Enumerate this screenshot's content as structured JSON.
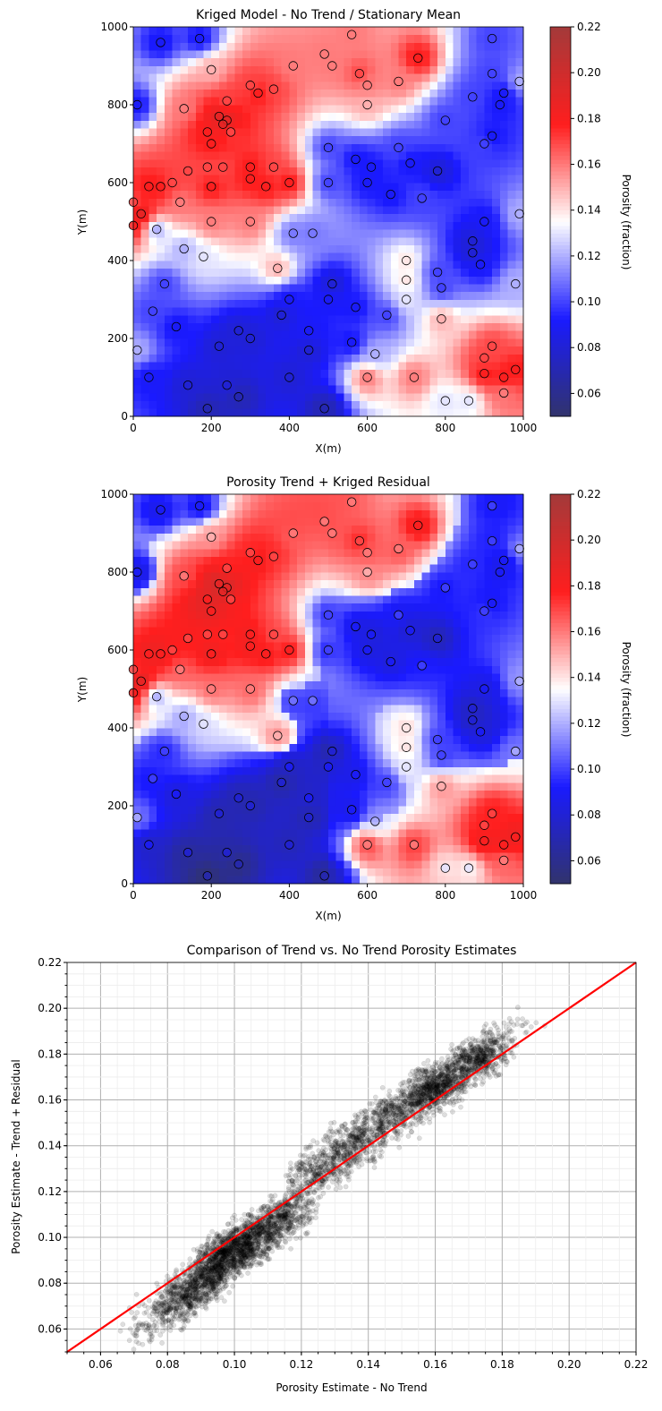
{
  "chart_data": [
    {
      "type": "heatmap",
      "title": "Kriged Model - No Trend / Stationary Mean",
      "xlabel": "X(m)",
      "ylabel": "Y(m)",
      "xlim": [
        0,
        1000
      ],
      "ylim": [
        0,
        1000
      ],
      "xticks": [
        "0",
        "200",
        "400",
        "600",
        "800",
        "1000"
      ],
      "yticks": [
        "0",
        "200",
        "400",
        "600",
        "800",
        "1000"
      ],
      "colorbar": {
        "label": "Porosity (fraction)",
        "range": [
          0.05,
          0.22
        ],
        "ticks": [
          "0.06",
          "0.08",
          "0.10",
          "0.12",
          "0.14",
          "0.16",
          "0.18",
          "0.20",
          "0.22"
        ],
        "colormap": "seismic"
      },
      "stationary_mean": 0.13,
      "wells": [
        [
          20,
          520,
          0.19
        ],
        [
          40,
          590,
          0.18
        ],
        [
          70,
          590,
          0.18
        ],
        [
          100,
          600,
          0.17
        ],
        [
          140,
          630,
          0.17
        ],
        [
          190,
          640,
          0.17
        ],
        [
          200,
          590,
          0.18
        ],
        [
          230,
          640,
          0.17
        ],
        [
          220,
          770,
          0.19
        ],
        [
          240,
          760,
          0.19
        ],
        [
          230,
          750,
          0.19
        ],
        [
          250,
          730,
          0.17
        ],
        [
          200,
          700,
          0.18
        ],
        [
          190,
          730,
          0.18
        ],
        [
          300,
          640,
          0.18
        ],
        [
          300,
          610,
          0.18
        ],
        [
          340,
          590,
          0.18
        ],
        [
          360,
          640,
          0.17
        ],
        [
          400,
          600,
          0.18
        ],
        [
          320,
          830,
          0.18
        ],
        [
          300,
          850,
          0.17
        ],
        [
          360,
          840,
          0.17
        ],
        [
          240,
          810,
          0.17
        ],
        [
          410,
          900,
          0.16
        ],
        [
          490,
          930,
          0.16
        ],
        [
          510,
          900,
          0.16
        ],
        [
          580,
          880,
          0.17
        ],
        [
          560,
          980,
          0.16
        ],
        [
          730,
          920,
          0.18
        ],
        [
          600,
          850,
          0.16
        ],
        [
          600,
          800,
          0.15
        ],
        [
          680,
          860,
          0.16
        ],
        [
          950,
          100,
          0.18
        ],
        [
          900,
          110,
          0.18
        ],
        [
          980,
          120,
          0.18
        ],
        [
          920,
          180,
          0.17
        ],
        [
          900,
          150,
          0.17
        ],
        [
          950,
          60,
          0.16
        ],
        [
          600,
          100,
          0.16
        ],
        [
          720,
          100,
          0.16
        ],
        [
          790,
          250,
          0.15
        ],
        [
          370,
          380,
          0.15
        ],
        [
          200,
          500,
          0.16
        ],
        [
          300,
          500,
          0.16
        ],
        [
          120,
          550,
          0.16
        ],
        [
          0,
          490,
          0.18
        ],
        [
          0,
          550,
          0.17
        ],
        [
          130,
          790,
          0.16
        ],
        [
          200,
          890,
          0.15
        ],
        [
          70,
          960,
          0.09
        ],
        [
          170,
          970,
          0.09
        ],
        [
          10,
          800,
          0.09
        ],
        [
          40,
          100,
          0.09
        ],
        [
          190,
          20,
          0.07
        ],
        [
          270,
          50,
          0.07
        ],
        [
          240,
          80,
          0.08
        ],
        [
          140,
          80,
          0.08
        ],
        [
          110,
          230,
          0.09
        ],
        [
          220,
          180,
          0.08
        ],
        [
          270,
          220,
          0.08
        ],
        [
          300,
          200,
          0.08
        ],
        [
          380,
          260,
          0.08
        ],
        [
          400,
          300,
          0.09
        ],
        [
          400,
          100,
          0.08
        ],
        [
          450,
          170,
          0.08
        ],
        [
          450,
          220,
          0.09
        ],
        [
          490,
          20,
          0.07
        ],
        [
          510,
          340,
          0.08
        ],
        [
          500,
          300,
          0.09
        ],
        [
          570,
          280,
          0.09
        ],
        [
          570,
          660,
          0.09
        ],
        [
          610,
          640,
          0.09
        ],
        [
          600,
          600,
          0.09
        ],
        [
          500,
          600,
          0.1
        ],
        [
          500,
          690,
          0.1
        ],
        [
          660,
          570,
          0.09
        ],
        [
          780,
          630,
          0.08
        ],
        [
          710,
          650,
          0.09
        ],
        [
          680,
          690,
          0.1
        ],
        [
          870,
          450,
          0.08
        ],
        [
          900,
          500,
          0.09
        ],
        [
          870,
          420,
          0.08
        ],
        [
          890,
          390,
          0.09
        ],
        [
          780,
          370,
          0.1
        ],
        [
          790,
          330,
          0.1
        ],
        [
          920,
          720,
          0.09
        ],
        [
          900,
          700,
          0.1
        ],
        [
          940,
          800,
          0.09
        ],
        [
          950,
          830,
          0.09
        ],
        [
          870,
          820,
          0.1
        ],
        [
          920,
          880,
          0.1
        ],
        [
          920,
          970,
          0.1
        ],
        [
          50,
          270,
          0.1
        ],
        [
          80,
          340,
          0.1
        ],
        [
          560,
          190,
          0.09
        ],
        [
          650,
          260,
          0.1
        ],
        [
          800,
          760,
          0.1
        ],
        [
          740,
          560,
          0.1
        ],
        [
          410,
          470,
          0.11
        ],
        [
          460,
          470,
          0.11
        ],
        [
          60,
          480,
          0.12
        ],
        [
          130,
          430,
          0.12
        ],
        [
          180,
          410,
          0.13
        ],
        [
          700,
          400,
          0.14
        ],
        [
          700,
          350,
          0.14
        ],
        [
          10,
          170,
          0.12
        ],
        [
          620,
          160,
          0.12
        ],
        [
          700,
          300,
          0.13
        ],
        [
          990,
          860,
          0.12
        ],
        [
          990,
          520,
          0.12
        ],
        [
          980,
          340,
          0.12
        ],
        [
          860,
          40,
          0.13
        ],
        [
          800,
          40,
          0.13
        ]
      ]
    },
    {
      "type": "heatmap",
      "title": "Porosity Trend + Kriged Residual",
      "xlabel": "X(m)",
      "ylabel": "Y(m)",
      "xlim": [
        0,
        1000
      ],
      "ylim": [
        0,
        1000
      ],
      "xticks": [
        "0",
        "200",
        "400",
        "600",
        "800",
        "1000"
      ],
      "yticks": [
        "0",
        "200",
        "400",
        "600",
        "800",
        "1000"
      ],
      "colorbar": {
        "label": "Porosity (fraction)",
        "range": [
          0.05,
          0.22
        ],
        "ticks": [
          "0.06",
          "0.08",
          "0.10",
          "0.12",
          "0.14",
          "0.16",
          "0.18",
          "0.20",
          "0.22"
        ],
        "colormap": "seismic"
      }
    },
    {
      "type": "scatter",
      "title": "Comparison of Trend vs. No Trend Porosity Estimates",
      "xlabel": "Porosity Estimate - No Trend",
      "ylabel": "Porosity Estimate - Trend + Residual",
      "xlim": [
        0.05,
        0.22
      ],
      "ylim": [
        0.05,
        0.22
      ],
      "xticks": [
        "0.06",
        "0.08",
        "0.10",
        "0.12",
        "0.14",
        "0.16",
        "0.18",
        "0.20",
        "0.22"
      ],
      "yticks": [
        "0.06",
        "0.08",
        "0.10",
        "0.12",
        "0.14",
        "0.16",
        "0.18",
        "0.20",
        "0.22"
      ],
      "grid": "major and minor",
      "reference_line": {
        "type": "1:1",
        "color": "#ff0000"
      },
      "point_color": "#000000"
    }
  ]
}
